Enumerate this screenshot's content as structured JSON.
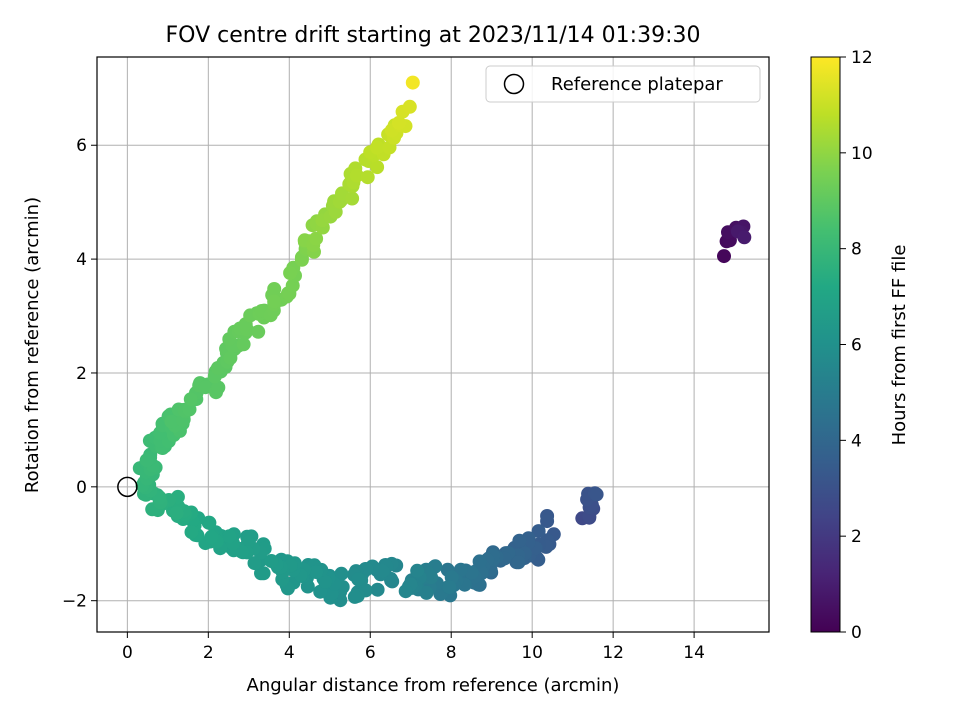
{
  "chart_data": {
    "type": "scatter",
    "title": "FOV centre drift starting at 2023/11/14 01:39:30",
    "xlabel": "Angular distance from reference (arcmin)",
    "ylabel": "Rotation from reference (arcmin)",
    "xlim": [
      -0.75,
      15.85
    ],
    "ylim": [
      -2.55,
      7.55
    ],
    "xticks": [
      0,
      2,
      4,
      6,
      8,
      10,
      12,
      14
    ],
    "yticks": [
      -2,
      0,
      2,
      4,
      6
    ],
    "grid": true,
    "legend": {
      "placement": "upper right",
      "entries": [
        "Reference platepar"
      ]
    },
    "reference_point": {
      "x": 0,
      "y": 0,
      "label": "Reference platepar"
    },
    "colorbar": {
      "label": "Hours from first FF file",
      "colormap": "viridis",
      "range": [
        0,
        12
      ],
      "ticks": [
        0,
        2,
        4,
        6,
        8,
        10,
        12
      ]
    },
    "segments": [
      {
        "h0": 0.2,
        "h1": 0.9,
        "n": 10,
        "pts": [
          [
            14.7,
            4.1
          ],
          [
            14.85,
            4.3
          ],
          [
            15.05,
            4.55
          ],
          [
            15.15,
            4.65
          ],
          [
            15.15,
            4.3
          ]
        ],
        "jitter": [
          0.12,
          0.12
        ]
      },
      {
        "h0": 2.6,
        "h1": 3.2,
        "n": 10,
        "pts": [
          [
            11.3,
            -0.55
          ],
          [
            11.45,
            -0.5
          ],
          [
            11.4,
            -0.12
          ],
          [
            11.55,
            -0.1
          ]
        ],
        "jitter": [
          0.08,
          0.06
        ]
      },
      {
        "h0": 3.3,
        "h1": 5.4,
        "n": 85,
        "pts": [
          [
            10.4,
            -0.7
          ],
          [
            10.2,
            -1.0
          ],
          [
            9.8,
            -1.1
          ],
          [
            9.5,
            -1.3
          ],
          [
            9.1,
            -1.4
          ],
          [
            8.7,
            -1.5
          ],
          [
            8.3,
            -1.6
          ],
          [
            7.9,
            -1.7
          ],
          [
            7.4,
            -1.6
          ],
          [
            6.9,
            -1.7
          ]
        ],
        "jitter": [
          0.25,
          0.25
        ]
      },
      {
        "h0": 5.4,
        "h1": 6.6,
        "n": 70,
        "pts": [
          [
            6.8,
            -1.6
          ],
          [
            6.0,
            -1.6
          ],
          [
            5.5,
            -1.8
          ],
          [
            5.1,
            -1.7
          ],
          [
            4.6,
            -1.6
          ],
          [
            4.1,
            -1.55
          ],
          [
            3.6,
            -1.4
          ],
          [
            3.2,
            -1.2
          ]
        ],
        "jitter": [
          0.25,
          0.25
        ]
      },
      {
        "h0": 6.6,
        "h1": 7.8,
        "n": 60,
        "pts": [
          [
            3.2,
            -1.0
          ],
          [
            2.7,
            -1.0
          ],
          [
            2.3,
            -0.9
          ],
          [
            1.9,
            -0.75
          ],
          [
            1.5,
            -0.6
          ],
          [
            1.1,
            -0.35
          ],
          [
            0.7,
            -0.2
          ],
          [
            0.4,
            0.0
          ]
        ],
        "jitter": [
          0.2,
          0.18
        ]
      },
      {
        "h0": 7.8,
        "h1": 8.6,
        "n": 45,
        "pts": [
          [
            0.35,
            0.1
          ],
          [
            0.5,
            0.4
          ],
          [
            0.7,
            0.7
          ],
          [
            0.9,
            0.9
          ],
          [
            1.1,
            1.1
          ],
          [
            1.3,
            1.2
          ]
        ],
        "jitter": [
          0.18,
          0.18
        ]
      },
      {
        "h0": 8.6,
        "h1": 9.5,
        "n": 60,
        "pts": [
          [
            1.2,
            1.2
          ],
          [
            1.6,
            1.5
          ],
          [
            2.0,
            1.8
          ],
          [
            2.4,
            2.2
          ],
          [
            2.7,
            2.6
          ],
          [
            3.1,
            2.9
          ],
          [
            3.6,
            3.3
          ],
          [
            4.0,
            3.5
          ]
        ],
        "jitter": [
          0.18,
          0.18
        ]
      },
      {
        "h0": 9.5,
        "h1": 11.3,
        "n": 55,
        "pts": [
          [
            4.0,
            3.8
          ],
          [
            4.4,
            4.2
          ],
          [
            4.8,
            4.6
          ],
          [
            5.2,
            5.0
          ],
          [
            5.6,
            5.3
          ],
          [
            6.0,
            5.7
          ],
          [
            6.4,
            6.1
          ],
          [
            6.8,
            6.5
          ],
          [
            7.0,
            6.6
          ]
        ],
        "jitter": [
          0.16,
          0.16
        ]
      },
      {
        "h0": 11.8,
        "h1": 11.95,
        "n": 1,
        "pts": [
          [
            7.05,
            7.1
          ],
          [
            7.05,
            7.1
          ]
        ],
        "jitter": [
          0,
          0
        ]
      }
    ]
  }
}
